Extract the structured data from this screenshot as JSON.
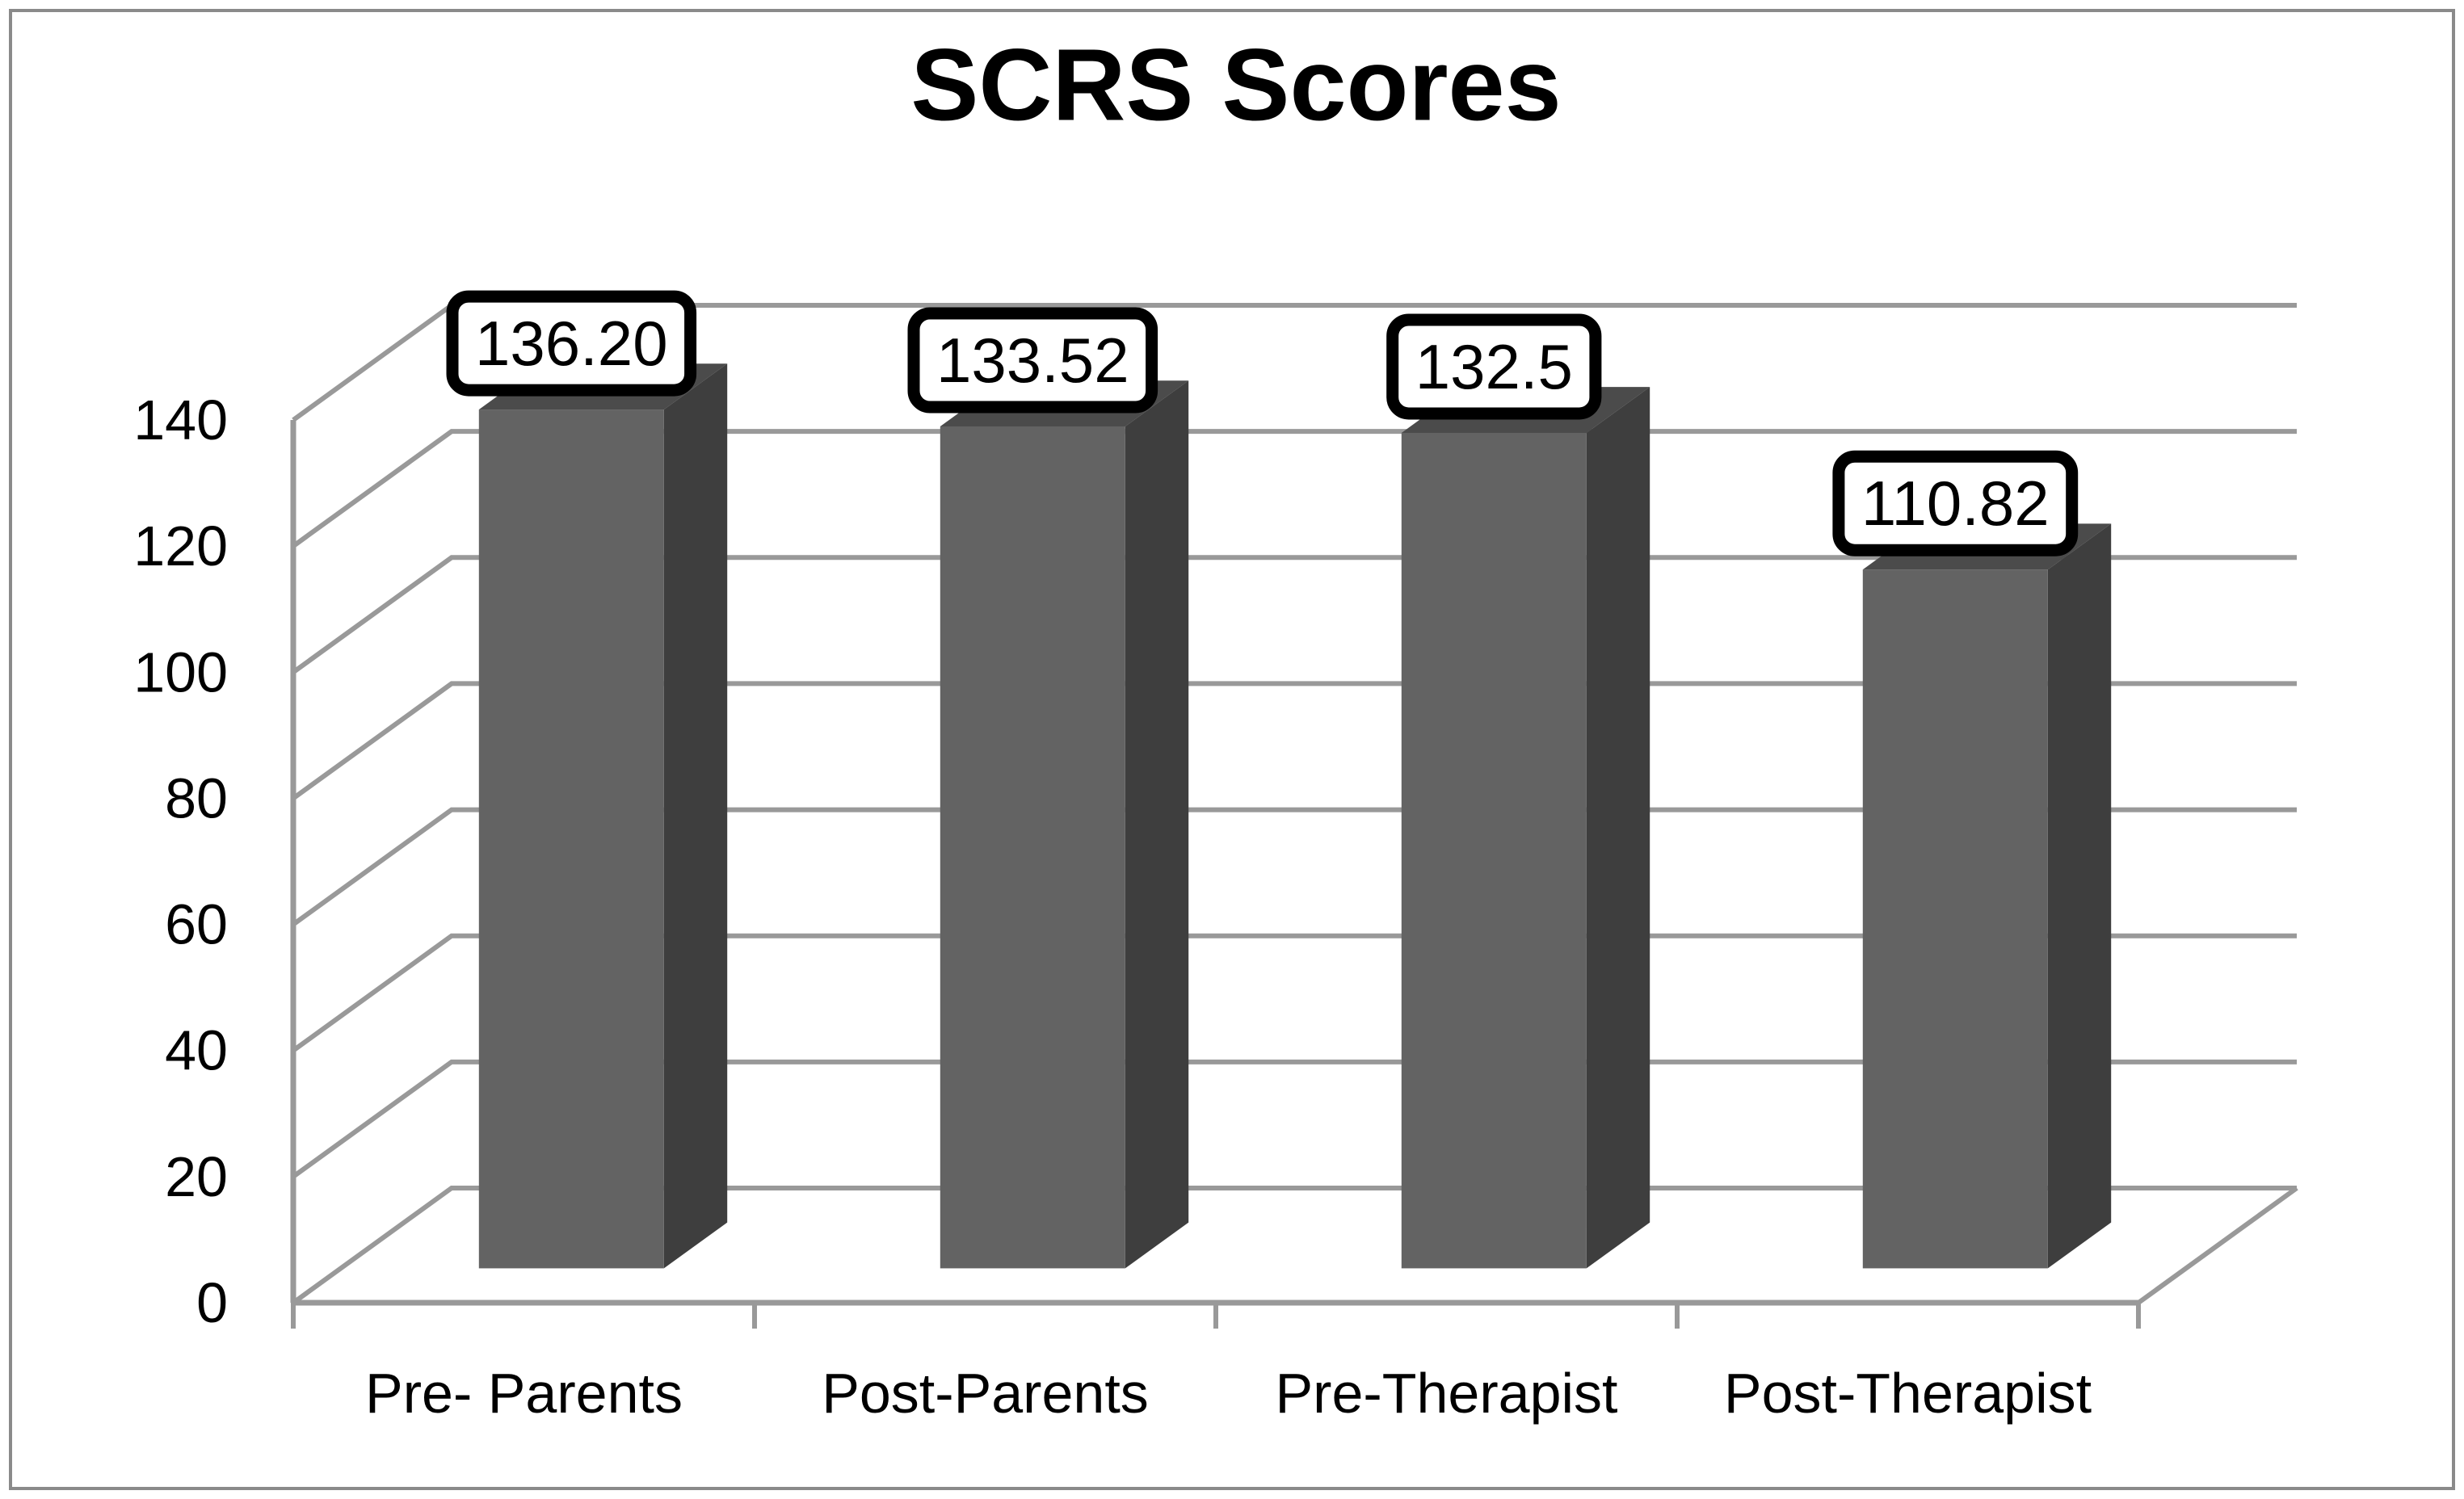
{
  "page": {
    "background": "#ffffff",
    "frame_color": "#8a8a8a"
  },
  "chart_data": {
    "type": "bar",
    "style": "3d-column",
    "title": "SCRS Scores",
    "categories": [
      "Pre- Parents",
      "Post-Parents",
      "Pre-Therapist",
      "Post-Therapist"
    ],
    "values": [
      136.2,
      133.52,
      132.5,
      110.82
    ],
    "value_labels": [
      "136.20",
      "133.52",
      "132.5",
      "110.82"
    ],
    "series": [
      {
        "name": "SCRS Scores",
        "values": [
          136.2,
          133.52,
          132.5,
          110.82
        ]
      }
    ],
    "xlabel": "",
    "ylabel": "",
    "ylim": [
      0,
      140
    ],
    "ytick_step": 20,
    "yticks": [
      "0",
      "20",
      "40",
      "60",
      "80",
      "100",
      "120",
      "140"
    ],
    "grid": true,
    "legend": false,
    "data_labels_boxed": true,
    "colors": {
      "bar_front": "#636363",
      "bar_top": "#4b4b4b",
      "bar_side": "#3e3e3e",
      "gridline": "#999999",
      "axis": "#999999",
      "tick": "#999999",
      "label_box_fill": "#ffffff",
      "label_box_border": "#000000",
      "text": "#000000"
    }
  }
}
